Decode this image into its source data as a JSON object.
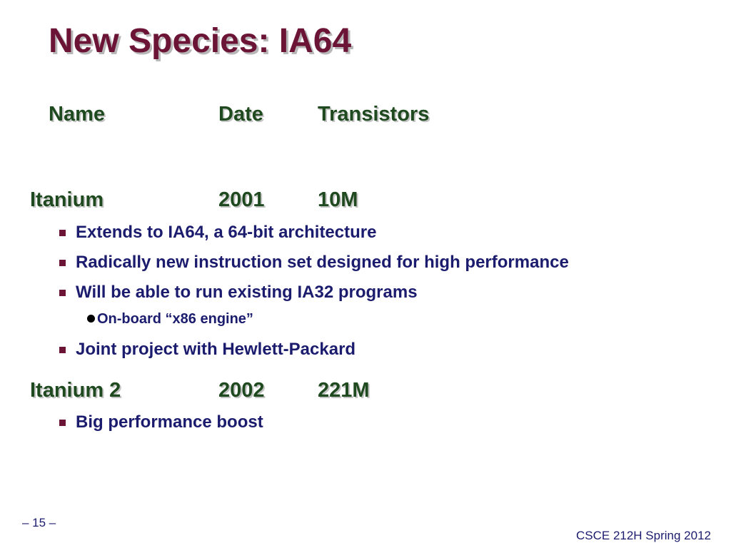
{
  "slide": {
    "title": "New Species: IA64",
    "header": {
      "name": "Name",
      "date": "Date",
      "transistors": "Transistors"
    },
    "processors": [
      {
        "name": "Itanium",
        "date": "2001",
        "transistors": "10M",
        "bullets": [
          "Extends to IA64, a 64-bit architecture",
          "Radically new instruction set designed for high performance",
          "Will be able to run existing IA32 programs"
        ],
        "sub_bullet": "On-board “x86 engine”",
        "last_bullet": "Joint project with Hewlett-Packard"
      },
      {
        "name": "Itanium 2",
        "date": "2002",
        "transistors": "221M",
        "bullets": [
          "Big performance boost"
        ]
      }
    ],
    "page_number": "– 15 –",
    "course": "CSCE 212H Spring 2012",
    "colors": {
      "title": "#6b1436",
      "heading": "#1f4a1f",
      "body": "#1c1c6e",
      "bullet_square": "#6b1436"
    }
  }
}
